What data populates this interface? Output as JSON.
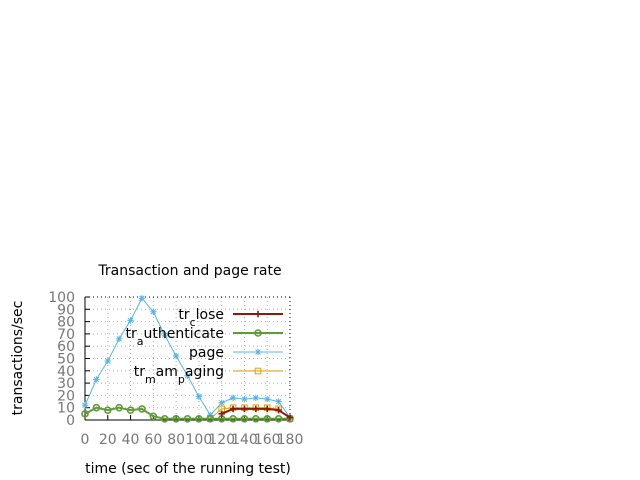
{
  "chart_data": {
    "type": "line",
    "title": "Transaction and page rate",
    "xlabel": "time (sec of the running test)",
    "ylabel": "transactions/sec",
    "xlim": [
      0,
      180
    ],
    "ylim": [
      0,
      100
    ],
    "xticks": [
      0,
      20,
      40,
      60,
      80,
      100,
      120,
      140,
      160,
      180
    ],
    "yticks": [
      0,
      10,
      20,
      30,
      40,
      50,
      60,
      70,
      80,
      90,
      100
    ],
    "grid": true,
    "legend_position": "top-right",
    "x": [
      0,
      10,
      20,
      30,
      40,
      50,
      60,
      70,
      80,
      90,
      100,
      110,
      120,
      130,
      140,
      150,
      160,
      170,
      180
    ],
    "series": [
      {
        "name": "tr_close",
        "legend": {
          "base": "tr",
          "sub": "c",
          "rest": "lose"
        },
        "color": "#8b1a0e",
        "marker": "plus",
        "values": [
          null,
          null,
          null,
          null,
          null,
          null,
          null,
          null,
          null,
          null,
          null,
          null,
          5,
          9,
          9,
          9,
          9,
          8,
          2
        ]
      },
      {
        "name": "tr_authenticate",
        "legend": {
          "base": "tr",
          "sub": "a",
          "rest": "uthenticate"
        },
        "color": "#5e9c36",
        "marker": "circle",
        "values": [
          5,
          10,
          8,
          10,
          8,
          9,
          3,
          1,
          1,
          1,
          1,
          1,
          1,
          1,
          1,
          1,
          1,
          1,
          1
        ]
      },
      {
        "name": "page",
        "legend": {
          "base": "page",
          "sub": "",
          "rest": ""
        },
        "color": "#56b4e9",
        "marker": "star",
        "values": [
          12,
          33,
          48,
          66,
          81,
          99,
          88,
          69,
          52,
          36,
          19,
          4,
          14,
          18,
          17,
          18,
          17,
          15,
          2
        ]
      },
      {
        "name": "tr_mam_paging",
        "legend": {
          "base": "tr",
          "sub": "m",
          "rest": "am",
          "sub2": "p",
          "rest2": "aging"
        },
        "color": "#e69f00",
        "marker": "square",
        "values": [
          null,
          null,
          null,
          null,
          null,
          null,
          null,
          null,
          null,
          null,
          null,
          1,
          9,
          10,
          10,
          10,
          10,
          9,
          1
        ]
      }
    ]
  }
}
